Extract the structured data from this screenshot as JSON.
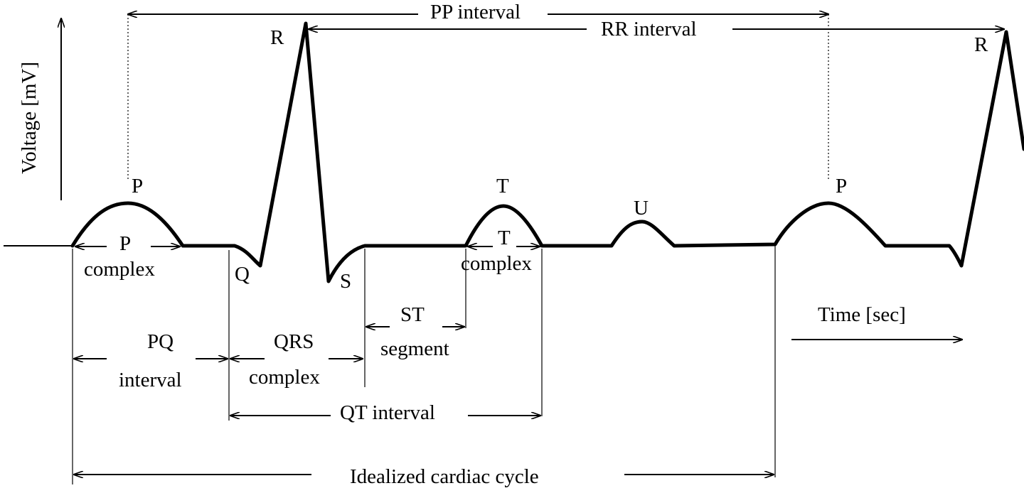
{
  "axes": {
    "y_label": "Voltage [mV]",
    "x_label": "Time [sec]"
  },
  "waves": {
    "p1": "P",
    "r1": "R",
    "q": "Q",
    "s": "S",
    "t": "T",
    "u": "U",
    "p2": "P",
    "r2": "R"
  },
  "intervals": {
    "pp": "PP interval",
    "rr": "RR interval",
    "p_complex_1": "P",
    "p_complex_2": "complex",
    "t_complex_1": "T",
    "t_complex_2": "complex",
    "st_segment_1": "ST",
    "st_segment_2": "segment",
    "pq_1": "PQ",
    "pq_2": "interval",
    "qrs_1": "QRS",
    "qrs_2": "complex",
    "qt": "QT interval",
    "cycle": "Idealized cardiac cycle"
  }
}
